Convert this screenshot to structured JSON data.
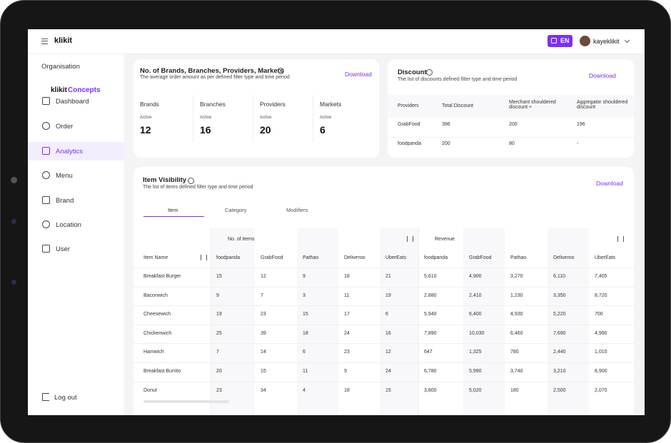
{
  "header": {
    "logo": "klikit",
    "language": "EN",
    "user": "kayeklikit"
  },
  "sidebar": {
    "organisation_label": "Organisation",
    "organisation": {
      "logo": "klikit",
      "name": "Concepts"
    },
    "nav": [
      "Dashboard",
      "Order",
      "Analytics",
      "Menu",
      "Brand",
      "Location",
      "User"
    ],
    "logout": "Log out"
  },
  "summary": {
    "title": "No. of Brands, Branches, Providers, Markets",
    "subtitle": "The average order amount as per defined filter type and time period",
    "download": "Download",
    "stats": [
      {
        "label": "Brands",
        "status": "Active",
        "value": 12
      },
      {
        "label": "Branches",
        "status": "Active",
        "value": 16
      },
      {
        "label": "Providers",
        "status": "Active",
        "value": 20
      },
      {
        "label": "Markets",
        "status": "Active",
        "value": 6
      }
    ]
  },
  "discount": {
    "title": "Discount",
    "subtitle": "The list of discounts defined filter type and time period",
    "download": "Download",
    "columns": [
      "Providers",
      "Total Discount",
      "Merchant shouldered discount +",
      "Aggregator shouldered discount"
    ],
    "rows": [
      [
        "GrabFood",
        "396",
        "200",
        "196"
      ],
      [
        "foodpanda",
        "200",
        "80",
        "-"
      ]
    ]
  },
  "items": {
    "title": "Item Visibility",
    "subtitle": "The list of items defined filter type and time period",
    "download": "Download",
    "tabs": [
      "Item",
      "Category",
      "Modifiers"
    ],
    "groups": [
      "No. of items",
      "Revenue"
    ],
    "item_column": "Item Name",
    "providers": [
      "foodpanda",
      "GrabFood",
      "Pathao",
      "Deliveroo",
      "UberEats"
    ],
    "rows": [
      {
        "name": "Breakfast Burger",
        "counts": [
          15,
          12,
          9,
          18,
          21
        ],
        "revenue": [
          "5,610",
          "4,900",
          "3,270",
          "6,110",
          "7,405"
        ]
      },
      {
        "name": "Baconwich",
        "counts": [
          9,
          7,
          3,
          11,
          19
        ],
        "revenue": [
          "2,880",
          "2,410",
          "1,230",
          "3,350",
          "8,720"
        ]
      },
      {
        "name": "Cheesewich",
        "counts": [
          19,
          23,
          15,
          17,
          6
        ],
        "revenue": [
          "5,940",
          "6,400",
          "4,930",
          "5,220",
          "700"
        ]
      },
      {
        "name": "Chickenwich",
        "counts": [
          25,
          39,
          18,
          24,
          16
        ],
        "revenue": [
          "7,890",
          "10,030",
          "6,460",
          "7,690",
          "4,990"
        ]
      },
      {
        "name": "Hamwich",
        "counts": [
          7,
          14,
          6,
          23,
          12
        ],
        "revenue": [
          "647",
          "1,325",
          "780",
          "2,440",
          "1,010"
        ]
      },
      {
        "name": "Breakfast Burrito",
        "counts": [
          20,
          15,
          11,
          9,
          24
        ],
        "revenue": [
          "6,780",
          "5,990",
          "3,740",
          "3,210",
          "8,900"
        ]
      },
      {
        "name": "Donut",
        "counts": [
          23,
          34,
          4,
          18,
          15
        ],
        "revenue": [
          "3,800",
          "5,020",
          "180",
          "2,500",
          "2,070"
        ]
      }
    ]
  }
}
